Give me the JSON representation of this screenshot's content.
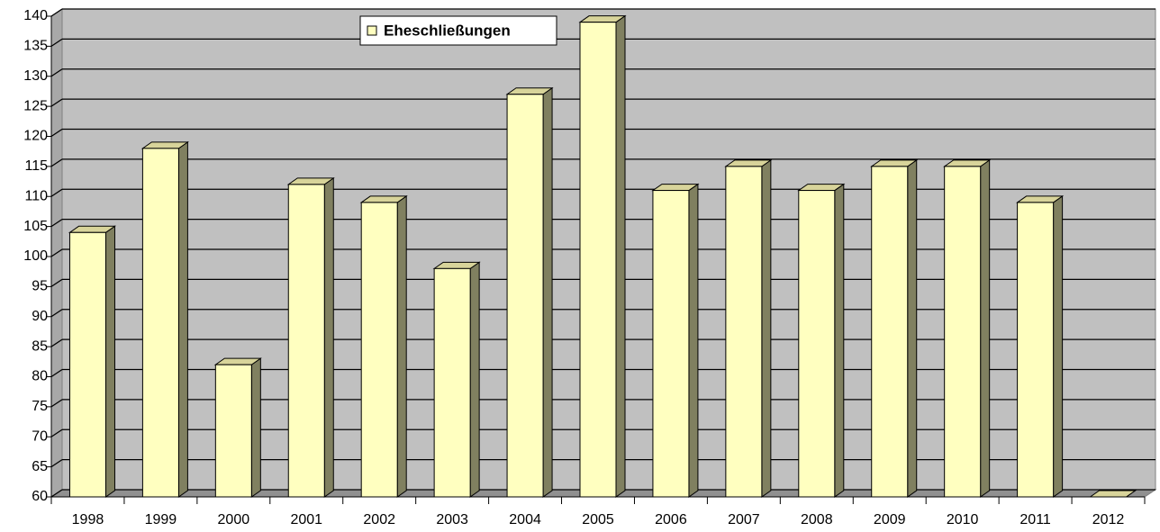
{
  "chart_data": {
    "type": "bar3d",
    "categories": [
      "1998",
      "1999",
      "2000",
      "2001",
      "2002",
      "2003",
      "2004",
      "2005",
      "2006",
      "2007",
      "2008",
      "2009",
      "2010",
      "2011",
      "2012"
    ],
    "series": [
      {
        "name": "Eheschließungen",
        "color": "#ffffc0",
        "values": [
          104,
          118,
          82,
          112,
          109,
          98,
          127,
          139,
          111,
          115,
          111,
          115,
          115,
          109,
          60
        ]
      }
    ],
    "ylim": [
      60,
      140
    ],
    "yticks": [
      60,
      65,
      70,
      75,
      80,
      85,
      90,
      95,
      100,
      105,
      110,
      115,
      120,
      125,
      130,
      135,
      140
    ],
    "grid": true,
    "legend": "top"
  }
}
